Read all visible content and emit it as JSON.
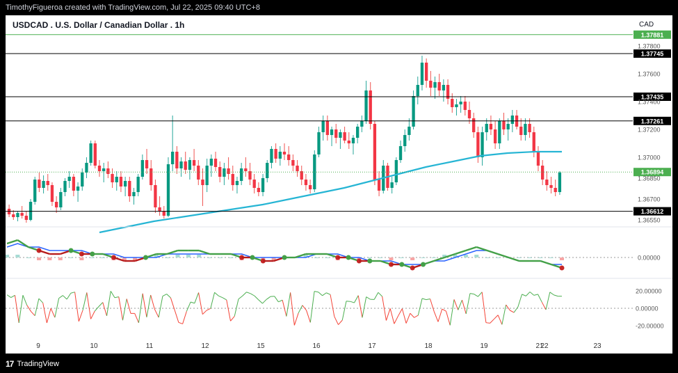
{
  "header": {
    "attribution": "TimothyFigueroa created with TradingView.com, Jul 22, 2025 09:40 UTC+8"
  },
  "footer": {
    "brand": "TradingView"
  },
  "chart_data": {
    "type": "candlestick",
    "title": "USDCAD . U.S. Dollar / Canadian Dollar . 1h",
    "currency": "CAD",
    "price_axis": {
      "ticks": [
        "1.37800",
        "1.37600",
        "1.37400",
        "1.37200",
        "1.37000",
        "1.36850",
        "1.36700",
        "1.36550"
      ],
      "ylim": [
        1.3652,
        1.3792
      ]
    },
    "horizontal_levels": [
      {
        "value": "1.37881",
        "color": "#4caf50"
      },
      {
        "value": "1.37745",
        "color": "#000000"
      },
      {
        "value": "1.37435",
        "color": "#000000"
      },
      {
        "value": "1.37261",
        "color": "#000000"
      },
      {
        "value": "1.36612",
        "color": "#000000"
      }
    ],
    "current_price": {
      "value": "1.36894",
      "color": "#4caf50"
    },
    "x_axis_labels": [
      "9",
      "10",
      "11",
      "12",
      "15",
      "16",
      "17",
      "18",
      "19",
      "21",
      "22",
      "23"
    ],
    "candles": [
      [
        1.3663,
        1.3666,
        1.3657,
        1.3659
      ],
      [
        1.3659,
        1.3662,
        1.3655,
        1.3657
      ],
      [
        1.3657,
        1.3661,
        1.3654,
        1.366
      ],
      [
        1.366,
        1.3665,
        1.3656,
        1.3658
      ],
      [
        1.3658,
        1.3661,
        1.3653,
        1.3655
      ],
      [
        1.3655,
        1.367,
        1.3654,
        1.3668
      ],
      [
        1.3668,
        1.3686,
        1.3666,
        1.3684
      ],
      [
        1.3684,
        1.3689,
        1.3675,
        1.3678
      ],
      [
        1.3678,
        1.3687,
        1.3674,
        1.3683
      ],
      [
        1.3683,
        1.3688,
        1.3676,
        1.368
      ],
      [
        1.368,
        1.3682,
        1.3665,
        1.3668
      ],
      [
        1.3668,
        1.3672,
        1.366,
        1.3664
      ],
      [
        1.3664,
        1.3678,
        1.3662,
        1.3675
      ],
      [
        1.3675,
        1.3685,
        1.3672,
        1.3683
      ],
      [
        1.3683,
        1.369,
        1.3678,
        1.3686
      ],
      [
        1.3686,
        1.3688,
        1.3672,
        1.3676
      ],
      [
        1.3676,
        1.3682,
        1.3668,
        1.3679
      ],
      [
        1.3679,
        1.3692,
        1.3676,
        1.3689
      ],
      [
        1.3689,
        1.37,
        1.3685,
        1.3696
      ],
      [
        1.3696,
        1.3712,
        1.3694,
        1.371
      ],
      [
        1.371,
        1.3712,
        1.3692,
        1.3694
      ],
      [
        1.3694,
        1.3698,
        1.3686,
        1.369
      ],
      [
        1.369,
        1.3696,
        1.3682,
        1.3692
      ],
      [
        1.3692,
        1.3697,
        1.3685,
        1.3688
      ],
      [
        1.3688,
        1.3692,
        1.3678,
        1.3682
      ],
      [
        1.3682,
        1.369,
        1.3676,
        1.3686
      ],
      [
        1.3686,
        1.369,
        1.3675,
        1.3679
      ],
      [
        1.3679,
        1.3686,
        1.3672,
        1.3683
      ],
      [
        1.3683,
        1.3686,
        1.3668,
        1.3672
      ],
      [
        1.3672,
        1.3678,
        1.3666,
        1.3675
      ],
      [
        1.3675,
        1.3688,
        1.3672,
        1.3686
      ],
      [
        1.3686,
        1.3702,
        1.3684,
        1.3698
      ],
      [
        1.3698,
        1.3706,
        1.3688,
        1.3692
      ],
      [
        1.3692,
        1.3698,
        1.3676,
        1.368
      ],
      [
        1.368,
        1.3684,
        1.366,
        1.3664
      ],
      [
        1.3664,
        1.3672,
        1.3658,
        1.3661
      ],
      [
        1.3661,
        1.3665,
        1.3656,
        1.3658
      ],
      [
        1.3658,
        1.37,
        1.3657,
        1.3695
      ],
      [
        1.3695,
        1.373,
        1.369,
        1.3704
      ],
      [
        1.3704,
        1.3708,
        1.3688,
        1.3692
      ],
      [
        1.3692,
        1.37,
        1.3686,
        1.3697
      ],
      [
        1.3697,
        1.3704,
        1.3688,
        1.3691
      ],
      [
        1.3691,
        1.37,
        1.3684,
        1.3698
      ],
      [
        1.3698,
        1.3706,
        1.369,
        1.3694
      ],
      [
        1.3694,
        1.3698,
        1.368,
        1.3684
      ],
      [
        1.3684,
        1.3692,
        1.3665,
        1.368
      ],
      [
        1.368,
        1.3699,
        1.3675,
        1.3694
      ],
      [
        1.3694,
        1.3702,
        1.3686,
        1.3699
      ],
      [
        1.3699,
        1.3704,
        1.369,
        1.3693
      ],
      [
        1.3693,
        1.3697,
        1.3682,
        1.3686
      ],
      [
        1.3686,
        1.3696,
        1.368,
        1.3692
      ],
      [
        1.3692,
        1.37,
        1.3684,
        1.3688
      ],
      [
        1.3688,
        1.3694,
        1.3676,
        1.368
      ],
      [
        1.368,
        1.3686,
        1.3674,
        1.3683
      ],
      [
        1.3683,
        1.3696,
        1.368,
        1.3692
      ],
      [
        1.3692,
        1.37,
        1.3686,
        1.369
      ],
      [
        1.369,
        1.3696,
        1.368,
        1.3684
      ],
      [
        1.3684,
        1.3688,
        1.3674,
        1.3678
      ],
      [
        1.3678,
        1.3682,
        1.3672,
        1.3675
      ],
      [
        1.3675,
        1.3688,
        1.3672,
        1.3685
      ],
      [
        1.3685,
        1.3698,
        1.3682,
        1.3696
      ],
      [
        1.3696,
        1.3708,
        1.3692,
        1.3706
      ],
      [
        1.3706,
        1.371,
        1.3696,
        1.3699
      ],
      [
        1.3699,
        1.3708,
        1.3694,
        1.3704
      ],
      [
        1.3704,
        1.371,
        1.3698,
        1.3702
      ],
      [
        1.3702,
        1.3708,
        1.3694,
        1.3698
      ],
      [
        1.3698,
        1.3702,
        1.369,
        1.3694
      ],
      [
        1.3694,
        1.3698,
        1.3686,
        1.369
      ],
      [
        1.369,
        1.3694,
        1.368,
        1.3684
      ],
      [
        1.3684,
        1.3688,
        1.3676,
        1.368
      ],
      [
        1.368,
        1.3684,
        1.3674,
        1.3677
      ],
      [
        1.3677,
        1.3705,
        1.3675,
        1.3702
      ],
      [
        1.3702,
        1.3722,
        1.37,
        1.3718
      ],
      [
        1.3718,
        1.373,
        1.3712,
        1.3726
      ],
      [
        1.3726,
        1.373,
        1.3712,
        1.3716
      ],
      [
        1.3716,
        1.3722,
        1.3708,
        1.372
      ],
      [
        1.372,
        1.3724,
        1.371,
        1.3714
      ],
      [
        1.3714,
        1.372,
        1.3706,
        1.3718
      ],
      [
        1.3718,
        1.3722,
        1.371,
        1.3712
      ],
      [
        1.3712,
        1.3718,
        1.3706,
        1.371
      ],
      [
        1.371,
        1.3716,
        1.3702,
        1.3714
      ],
      [
        1.3714,
        1.3724,
        1.371,
        1.3722
      ],
      [
        1.3722,
        1.373,
        1.3718,
        1.3726
      ],
      [
        1.3726,
        1.3755,
        1.3724,
        1.3748
      ],
      [
        1.3748,
        1.3754,
        1.372,
        1.3724
      ],
      [
        1.3724,
        1.3726,
        1.368,
        1.3684
      ],
      [
        1.3684,
        1.369,
        1.3672,
        1.3676
      ],
      [
        1.3676,
        1.3698,
        1.3674,
        1.3694
      ],
      [
        1.3694,
        1.3696,
        1.3676,
        1.3678
      ],
      [
        1.3678,
        1.3686,
        1.3674,
        1.3682
      ],
      [
        1.3682,
        1.37,
        1.368,
        1.3698
      ],
      [
        1.3698,
        1.3712,
        1.3696,
        1.3708
      ],
      [
        1.3708,
        1.372,
        1.3704,
        1.3716
      ],
      [
        1.3716,
        1.3728,
        1.3712,
        1.3722
      ],
      [
        1.3722,
        1.3748,
        1.372,
        1.3744
      ],
      [
        1.3744,
        1.3758,
        1.3738,
        1.3752
      ],
      [
        1.3752,
        1.3773,
        1.3748,
        1.3768
      ],
      [
        1.3768,
        1.3771,
        1.375,
        1.3755
      ],
      [
        1.3755,
        1.3762,
        1.3744,
        1.375
      ],
      [
        1.375,
        1.3758,
        1.3742,
        1.3754
      ],
      [
        1.3754,
        1.376,
        1.3744,
        1.3748
      ],
      [
        1.3748,
        1.3756,
        1.374,
        1.3752
      ],
      [
        1.3752,
        1.3756,
        1.3738,
        1.3742
      ],
      [
        1.3742,
        1.3746,
        1.3732,
        1.3736
      ],
      [
        1.3736,
        1.3742,
        1.373,
        1.3738
      ],
      [
        1.3738,
        1.3744,
        1.3732,
        1.374
      ],
      [
        1.374,
        1.3744,
        1.373,
        1.3734
      ],
      [
        1.3734,
        1.374,
        1.3724,
        1.3728
      ],
      [
        1.3728,
        1.3732,
        1.3714,
        1.3718
      ],
      [
        1.3718,
        1.3722,
        1.3696,
        1.37
      ],
      [
        1.37,
        1.3722,
        1.3694,
        1.3718
      ],
      [
        1.3718,
        1.3728,
        1.3712,
        1.3724
      ],
      [
        1.3724,
        1.373,
        1.3716,
        1.372
      ],
      [
        1.372,
        1.3726,
        1.3706,
        1.371
      ],
      [
        1.371,
        1.3728,
        1.3706,
        1.3726
      ],
      [
        1.3726,
        1.3732,
        1.3716,
        1.372
      ],
      [
        1.372,
        1.3728,
        1.3712,
        1.3724
      ],
      [
        1.3724,
        1.3734,
        1.3718,
        1.373
      ],
      [
        1.373,
        1.3734,
        1.372,
        1.3722
      ],
      [
        1.3722,
        1.3728,
        1.3712,
        1.3716
      ],
      [
        1.3716,
        1.3728,
        1.3712,
        1.3724
      ],
      [
        1.3724,
        1.3728,
        1.3714,
        1.3718
      ],
      [
        1.3718,
        1.3722,
        1.37,
        1.3704
      ],
      [
        1.3704,
        1.3708,
        1.369,
        1.3694
      ],
      [
        1.3694,
        1.3698,
        1.368,
        1.3684
      ],
      [
        1.3684,
        1.369,
        1.3676,
        1.368
      ],
      [
        1.368,
        1.3686,
        1.3674,
        1.3678
      ],
      [
        1.3678,
        1.3684,
        1.3672,
        1.3675
      ],
      [
        1.3675,
        1.369,
        1.3673,
        1.3689
      ]
    ],
    "moving_average": {
      "color": "#26b5d4",
      "values": [
        1.3646,
        1.365,
        1.3654,
        1.3657,
        1.366,
        1.3663,
        1.3666,
        1.367,
        1.3674,
        1.3678,
        1.3683,
        1.3688,
        1.3693,
        1.3697,
        1.3701,
        1.3703,
        1.3704,
        1.3704
      ]
    },
    "oscillator_1": {
      "zero_label": "0.00000",
      "fast": [
        4,
        5,
        3,
        2,
        1,
        1,
        2,
        1,
        1,
        1,
        0,
        -1,
        -1,
        0,
        1,
        1,
        2,
        2,
        2,
        1,
        1,
        1,
        0,
        0,
        -1,
        -1,
        0,
        0,
        1,
        1,
        1,
        0,
        0,
        -1,
        -1,
        -1,
        -2,
        -2,
        -3,
        -2,
        -1,
        0,
        1,
        2,
        3,
        2,
        1,
        0,
        -1,
        -1,
        -1,
        -2,
        -3
      ],
      "slow": [
        3,
        4,
        3,
        3,
        2,
        2,
        2,
        2,
        1,
        1,
        1,
        0,
        0,
        0,
        0,
        1,
        1,
        1,
        1,
        1,
        1,
        1,
        1,
        0,
        0,
        0,
        0,
        0,
        0,
        1,
        1,
        1,
        0,
        0,
        -1,
        -1,
        -1,
        -2,
        -2,
        -2,
        -1,
        -1,
        0,
        1,
        2,
        2,
        1,
        0,
        -1,
        -1,
        -1,
        -2,
        -2
      ]
    },
    "oscillator_2": {
      "ticks": [
        "20.00000",
        "0.00000",
        "-20.00000"
      ],
      "ylim": [
        -25,
        25
      ]
    }
  }
}
